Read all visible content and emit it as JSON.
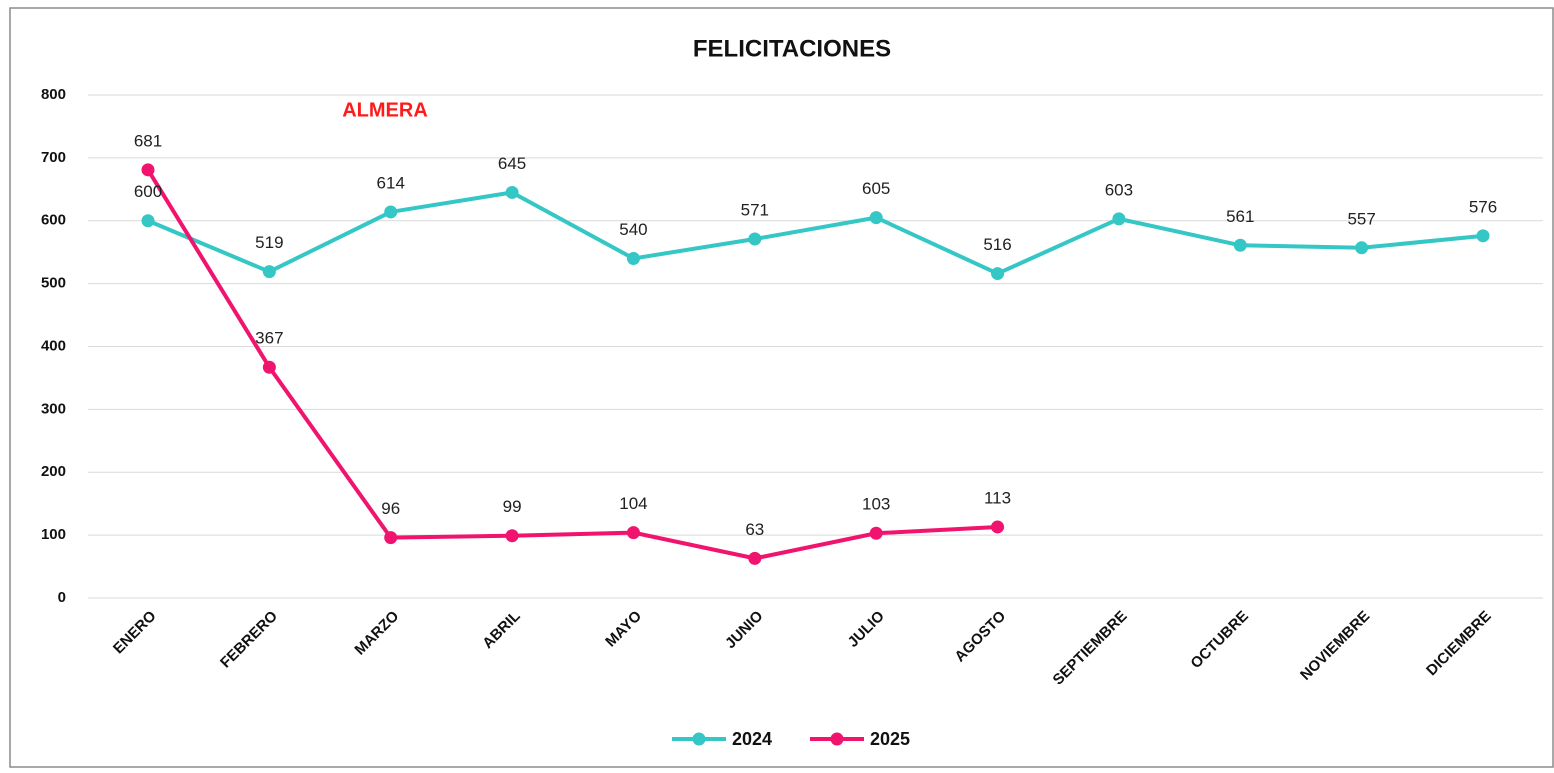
{
  "chart_data": {
    "type": "line",
    "title": "FELICITACIONES",
    "annotation": "ALMERA",
    "categories": [
      "ENERO",
      "FEBRERO",
      "MARZO",
      "ABRIL",
      "MAYO",
      "JUNIO",
      "JULIO",
      "AGOSTO",
      "SEPTIEMBRE",
      "OCTUBRE",
      "NOVIEMBRE",
      "DICIEMBRE"
    ],
    "series": [
      {
        "name": "2024",
        "color": "#35c6c6",
        "values": [
          600,
          519,
          614,
          645,
          540,
          571,
          605,
          516,
          603,
          561,
          557,
          576
        ]
      },
      {
        "name": "2025",
        "color": "#f0146e",
        "values": [
          681,
          367,
          96,
          99,
          104,
          63,
          103,
          113,
          null,
          null,
          null,
          null
        ]
      }
    ],
    "ylim": [
      0,
      800
    ],
    "yticks": [
      0,
      100,
      200,
      300,
      400,
      500,
      600,
      700,
      800
    ],
    "grid": true,
    "legend": "bottom"
  }
}
